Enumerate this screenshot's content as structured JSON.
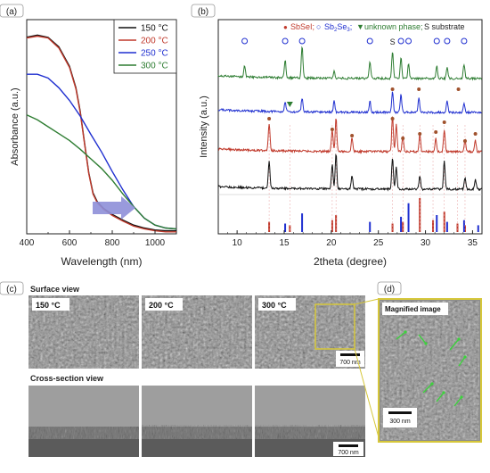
{
  "panel_labels": {
    "a": "(a)",
    "b": "(b)",
    "c": "(c)",
    "d": "(d)"
  },
  "chart_data": [
    {
      "type": "line",
      "panel": "(a)",
      "title": "",
      "xlabel": "Wavelength (nm)",
      "ylabel": "Absorbance (a.u.)",
      "xlim": [
        400,
        1100
      ],
      "x_ticks": [
        "400",
        "600",
        "800",
        "1000"
      ],
      "y_ticks": [],
      "ylim": [
        0,
        1
      ],
      "legend_position": "top-right",
      "series": [
        {
          "name": "150 °C",
          "color": "#111111",
          "x": [
            400,
            450,
            500,
            550,
            600,
            630,
            650,
            670,
            690,
            710,
            730,
            760,
            800,
            850,
            900,
            950,
            1000,
            1050,
            1100
          ],
          "y": [
            0.918,
            0.928,
            0.917,
            0.873,
            0.782,
            0.682,
            0.573,
            0.427,
            0.286,
            0.191,
            0.15,
            0.118,
            0.091,
            0.064,
            0.041,
            0.027,
            0.018,
            0.014,
            0.014
          ]
        },
        {
          "name": "200 °C",
          "color": "#c0392b",
          "x": [
            400,
            450,
            500,
            550,
            600,
            630,
            650,
            670,
            690,
            710,
            730,
            760,
            800,
            850,
            900,
            950,
            1000,
            1050,
            1100
          ],
          "y": [
            0.914,
            0.923,
            0.914,
            0.868,
            0.777,
            0.677,
            0.568,
            0.423,
            0.282,
            0.186,
            0.145,
            0.114,
            0.086,
            0.059,
            0.036,
            0.023,
            0.014,
            0.009,
            0.009
          ]
        },
        {
          "name": "250 °C",
          "color": "#1f2fd0",
          "x": [
            400,
            450,
            500,
            550,
            600,
            650,
            700,
            750,
            800,
            850,
            900,
            950,
            1000,
            1050,
            1100
          ],
          "y": [
            0.745,
            0.745,
            0.727,
            0.682,
            0.623,
            0.55,
            0.464,
            0.382,
            0.291,
            0.205,
            0.127,
            0.073,
            0.041,
            0.027,
            0.023
          ]
        },
        {
          "name": "300 °C",
          "color": "#2e7d32",
          "x": [
            400,
            450,
            500,
            550,
            600,
            650,
            700,
            750,
            800,
            850,
            900,
            950,
            1000,
            1050,
            1100
          ],
          "y": [
            0.555,
            0.532,
            0.5,
            0.468,
            0.436,
            0.395,
            0.35,
            0.305,
            0.25,
            0.186,
            0.127,
            0.073,
            0.041,
            0.027,
            0.023
          ]
        }
      ],
      "annotations": [
        "arrow pointing right (750 to 920 nm) indicating absorption edge shift"
      ]
    },
    {
      "type": "line",
      "panel": "(b)",
      "title": "",
      "xlabel": "2theta (degree)",
      "ylabel": "Intensity (a.u.)",
      "xlim": [
        8,
        36
      ],
      "x_ticks": [
        "10",
        "15",
        "20",
        "25",
        "30",
        "35"
      ],
      "legend_text": {
        "sbsei": "SbSeI;",
        "sb2se3_pre": "Sb",
        "sb2se3_sub1": "2",
        "sb2se3_mid": "Se",
        "sb2se3_sub2": "3",
        "sb2se3_post": ";",
        "unknown": "unknown phase;",
        "substrate": "S  substrate"
      },
      "markers": {
        "sbsei": "●",
        "sb2se3": "○",
        "unknown": "▼",
        "substrate": "S"
      },
      "series": [
        {
          "name": "300 °C",
          "color": "#2e7d32",
          "offset": 0.0,
          "peaks": [
            [
              10.8,
              0.35
            ],
            [
              15.1,
              0.55
            ],
            [
              16.9,
              1.0
            ],
            [
              20.3,
              0.2
            ],
            [
              24.1,
              0.55
            ],
            [
              26.5,
              0.85
            ],
            [
              27.4,
              0.65
            ],
            [
              28.2,
              0.45
            ],
            [
              31.2,
              0.4
            ],
            [
              32.3,
              0.35
            ],
            [
              34.1,
              0.45
            ]
          ]
        },
        {
          "name": "250 °C",
          "color": "#1f2fd0",
          "offset": 0.0,
          "peaks": [
            [
              15.1,
              0.35
            ],
            [
              16.9,
              0.55
            ],
            [
              20.3,
              0.45
            ],
            [
              24.1,
              0.45
            ],
            [
              26.5,
              0.85
            ],
            [
              27.4,
              0.7
            ],
            [
              29.3,
              0.55
            ],
            [
              32.3,
              0.45
            ],
            [
              34.1,
              0.35
            ]
          ]
        },
        {
          "name": "200 °C",
          "color": "#c0392b",
          "offset": 0.0,
          "peaks": [
            [
              13.4,
              0.7
            ],
            [
              20.1,
              0.55
            ],
            [
              20.5,
              0.85
            ],
            [
              22.2,
              0.35
            ],
            [
              26.5,
              0.9
            ],
            [
              26.9,
              0.7
            ],
            [
              27.6,
              0.4
            ],
            [
              29.4,
              0.45
            ],
            [
              31.1,
              0.35
            ],
            [
              32.0,
              0.55
            ],
            [
              34.2,
              0.3
            ],
            [
              35.3,
              0.3
            ]
          ]
        },
        {
          "name": "150 °C",
          "color": "#111111",
          "offset": 0.0,
          "peaks": [
            [
              13.4,
              0.75
            ],
            [
              20.1,
              0.65
            ],
            [
              20.5,
              0.95
            ],
            [
              22.2,
              0.35
            ],
            [
              26.5,
              0.85
            ],
            [
              26.9,
              0.6
            ],
            [
              29.4,
              0.35
            ],
            [
              32.0,
              0.75
            ],
            [
              34.2,
              0.3
            ],
            [
              35.3,
              0.25
            ]
          ]
        }
      ],
      "reference_sticks": {
        "sbsei": {
          "color": "#c0392b",
          "x": [
            13.4,
            15.6,
            20.1,
            20.5,
            26.5,
            27.6,
            29.4,
            30.8,
            32.0,
            33.4,
            34.2
          ],
          "h": [
            0.3,
            0.2,
            0.35,
            0.5,
            0.25,
            0.3,
            1.0,
            0.35,
            0.6,
            0.25,
            0.2
          ]
        },
        "sb2se3": {
          "color": "#1f2fd0",
          "x": [
            15.1,
            16.9,
            24.1,
            27.4,
            28.2,
            31.2,
            32.3,
            34.1,
            35.6
          ],
          "h": [
            0.25,
            0.55,
            0.3,
            0.45,
            0.85,
            0.5,
            0.3,
            0.35,
            0.2
          ]
        }
      },
      "peak_marks": {
        "green_circles": [
          10.8,
          15.1,
          16.9,
          24.1,
          27.4,
          28.2,
          31.2,
          32.3,
          34.1
        ],
        "substrate_S": [
          26.5
        ],
        "blue_triangle": [
          15.6
        ],
        "blue_dots": [
          26.5,
          29.3,
          33.5
        ],
        "red_dots": [
          13.4,
          20.1,
          22.2,
          26.5,
          27.6,
          29.4,
          31.1,
          32.0,
          34.2,
          35.3
        ]
      }
    }
  ],
  "panel_c": {
    "surface_title": "Surface view",
    "cross_title": "Cross-section view",
    "temps": [
      "150 °C",
      "200 °C",
      "300 °C"
    ],
    "scale_surface": "700 nm",
    "scale_cross": "700 nm"
  },
  "panel_d": {
    "title": "Magnified image",
    "scale": "300 nm"
  },
  "colors": {
    "black": "#111111",
    "red": "#c0392b",
    "blue": "#1f2fd0",
    "green": "#2e7d32",
    "highlight": "#d6c73a",
    "arrow": "#8e8fd8"
  }
}
